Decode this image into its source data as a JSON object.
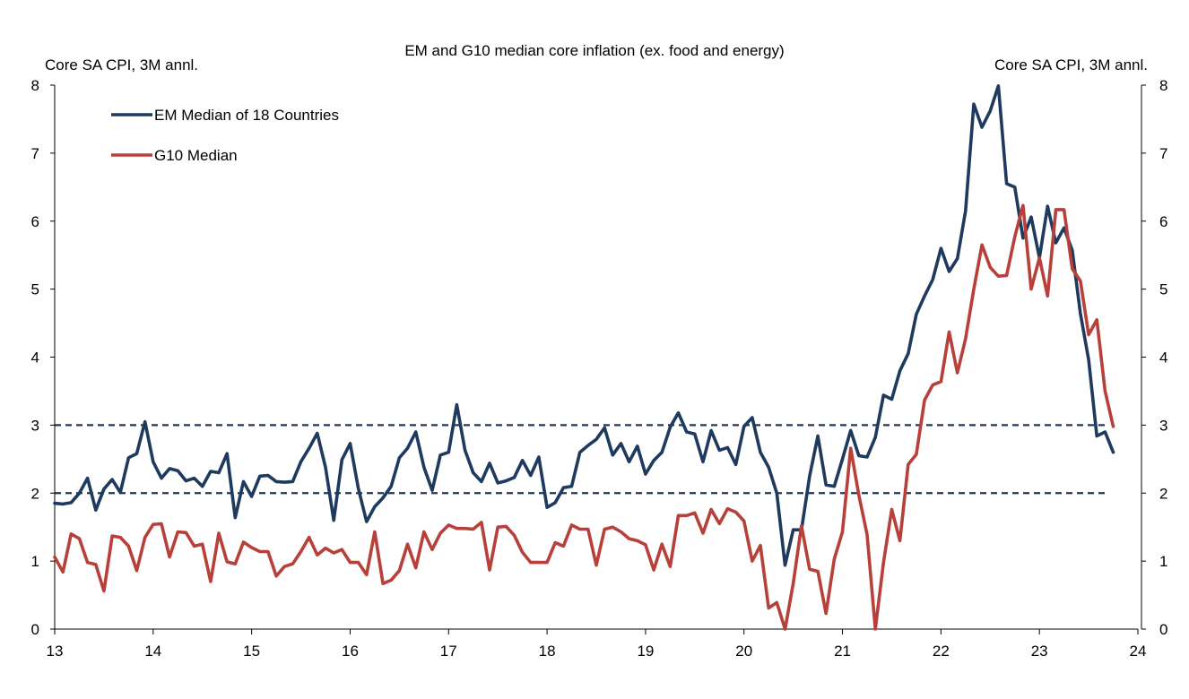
{
  "chart_data": {
    "type": "line",
    "title": "EM and G10 median core inflation (ex. food and energy)",
    "ylabel_left": "Core SA CPI, 3M annl.",
    "ylabel_right": "Core SA CPI, 3M annl.",
    "x_tick_labels": [
      "13",
      "14",
      "15",
      "16",
      "17",
      "18",
      "19",
      "20",
      "21",
      "22",
      "23",
      "24"
    ],
    "y_ticks": [
      0,
      1,
      2,
      3,
      4,
      5,
      6,
      7,
      8
    ],
    "xlim": [
      13,
      24
    ],
    "ylim": [
      0,
      8
    ],
    "reference_lines": [
      2,
      3
    ],
    "legend_position": "top-left",
    "series": [
      {
        "name": "EM Median of 18 Countries",
        "color": "#1f3a5f",
        "start": 13.0,
        "step": 0.0833333,
        "values": [
          1.85,
          1.84,
          1.86,
          2.0,
          2.22,
          1.75,
          2.06,
          2.2,
          2.01,
          2.52,
          2.58,
          3.05,
          2.46,
          2.22,
          2.36,
          2.33,
          2.18,
          2.22,
          2.1,
          2.32,
          2.3,
          2.58,
          1.64,
          2.17,
          1.95,
          2.25,
          2.26,
          2.17,
          2.16,
          2.17,
          2.46,
          2.66,
          2.88,
          2.38,
          1.6,
          2.49,
          2.73,
          2.07,
          1.58,
          1.8,
          1.93,
          2.1,
          2.52,
          2.66,
          2.9,
          2.38,
          2.04,
          2.56,
          2.6,
          3.3,
          2.63,
          2.3,
          2.17,
          2.44,
          2.15,
          2.18,
          2.23,
          2.48,
          2.26,
          2.53,
          1.79,
          1.86,
          2.08,
          2.1,
          2.6,
          2.7,
          2.79,
          2.96,
          2.56,
          2.73,
          2.46,
          2.69,
          2.28,
          2.48,
          2.6,
          2.97,
          3.18,
          2.9,
          2.87,
          2.46,
          2.92,
          2.63,
          2.67,
          2.42,
          2.98,
          3.11,
          2.6,
          2.38,
          2.0,
          0.94,
          1.46,
          1.46,
          2.25,
          2.84,
          2.12,
          2.1,
          2.5,
          2.92,
          2.55,
          2.53,
          2.82,
          3.44,
          3.38,
          3.8,
          4.05,
          4.63,
          4.9,
          5.14,
          5.6,
          5.26,
          5.45,
          6.15,
          7.72,
          7.38,
          7.62,
          7.99,
          6.55,
          6.5,
          5.75,
          6.06,
          5.46,
          6.22,
          5.68,
          5.9,
          5.57,
          4.64,
          3.96,
          2.84,
          2.9,
          2.6
        ]
      },
      {
        "name": "G10 Median",
        "color": "#b8403a",
        "start": 13.0,
        "step": 0.0833333,
        "values": [
          1.06,
          0.84,
          1.4,
          1.33,
          0.98,
          0.95,
          0.56,
          1.37,
          1.35,
          1.22,
          0.86,
          1.35,
          1.54,
          1.55,
          1.06,
          1.43,
          1.42,
          1.22,
          1.25,
          0.7,
          1.41,
          0.99,
          0.96,
          1.28,
          1.2,
          1.14,
          1.14,
          0.78,
          0.92,
          0.96,
          1.14,
          1.35,
          1.09,
          1.19,
          1.12,
          1.17,
          0.98,
          0.98,
          0.8,
          1.43,
          0.67,
          0.72,
          0.86,
          1.25,
          0.9,
          1.43,
          1.17,
          1.41,
          1.53,
          1.48,
          1.48,
          1.47,
          1.57,
          0.87,
          1.5,
          1.51,
          1.38,
          1.13,
          0.98,
          0.98,
          0.98,
          1.27,
          1.22,
          1.53,
          1.47,
          1.47,
          0.94,
          1.47,
          1.5,
          1.43,
          1.33,
          1.3,
          1.24,
          0.87,
          1.25,
          0.92,
          1.67,
          1.67,
          1.71,
          1.41,
          1.76,
          1.55,
          1.77,
          1.72,
          1.59,
          1.0,
          1.23,
          0.31,
          0.39,
          0.0,
          0.67,
          1.52,
          0.88,
          0.85,
          0.23,
          1.03,
          1.43,
          2.66,
          1.97,
          1.39,
          0.0,
          0.98,
          1.76,
          1.3,
          2.42,
          2.57,
          3.37,
          3.59,
          3.64,
          4.37,
          3.77,
          4.27,
          5.0,
          5.65,
          5.32,
          5.19,
          5.2,
          5.77,
          6.23,
          5.0,
          5.46,
          4.9,
          6.17,
          6.17,
          5.3,
          5.12,
          4.33,
          4.55,
          3.5,
          2.98
        ]
      }
    ]
  }
}
